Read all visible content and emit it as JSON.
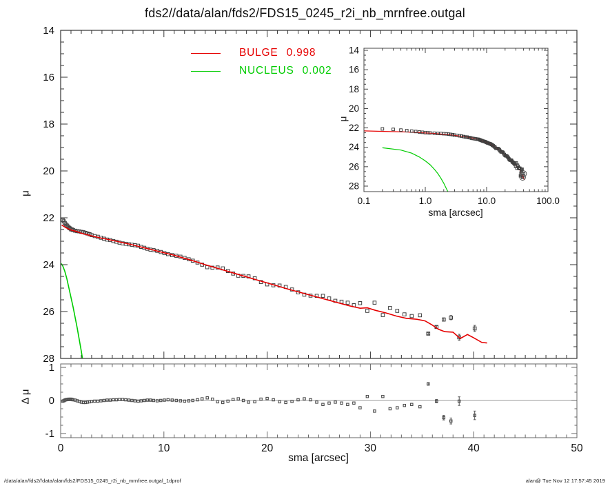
{
  "title": "fds2//data/alan/fds2/FDS15_0245_r2i_nb_mrnfree.outgal",
  "legend": {
    "items": [
      {
        "label": "BULGE",
        "value": "0.998",
        "color": "#e60000"
      },
      {
        "label": "NUCLEUS",
        "value": "0.002",
        "color": "#00cc00"
      }
    ]
  },
  "labels": {
    "main_ylabel": "μ",
    "residual_ylabel": "Δ μ",
    "xlabel": "sma [arcsec]",
    "inset_xlabel": "sma [arcsec]",
    "inset_ylabel": "μ"
  },
  "footer": {
    "left": "/data/alan/fds2//data/alan/fds2/FDS15_0245_r2i_nb_mrnfree.outgal_1dprof",
    "right": "alan@  Tue Nov 12 17:57:45 2019"
  },
  "chart_data": {
    "type": "scatter",
    "description": "Galaxy 1D surface brightness profile (mu vs sma) with BULGE and NUCLEUS model components, log-x inset and residual panel",
    "colors": {
      "observed": "#3f3f3f",
      "bulge": "#e60000",
      "nucleus": "#00cc00",
      "zero_line": "#999999",
      "frame": "#333333"
    },
    "main": {
      "x_range": [
        0,
        50
      ],
      "y_range": [
        28,
        14
      ],
      "x_ticks": [
        0,
        10,
        20,
        30,
        40,
        50
      ],
      "x_tick_labels": [
        "0",
        "10",
        "20",
        "30",
        "40",
        "50"
      ],
      "y_ticks": [
        14,
        16,
        18,
        20,
        22,
        24,
        26,
        28
      ],
      "y_tick_labels": [
        "14",
        "16",
        "18",
        "20",
        "22",
        "24",
        "26",
        "28"
      ],
      "grid": false,
      "legend_position": "top-left-inside"
    },
    "inset": {
      "x_scale": "log",
      "x_range": [
        0.1,
        100
      ],
      "y_range": [
        28,
        14
      ],
      "x_ticks": [
        0.1,
        1,
        10,
        100
      ],
      "x_tick_labels": [
        "0.1",
        "1.0",
        "10.0",
        "100.0"
      ],
      "y_ticks": [
        14,
        16,
        18,
        20,
        22,
        24,
        26,
        28
      ],
      "y_tick_labels": [
        "14",
        "16",
        "18",
        "20",
        "22",
        "24",
        "26",
        "28"
      ]
    },
    "residual": {
      "x_range": [
        0,
        50
      ],
      "y_range": [
        -1,
        1
      ],
      "y_ticks": [
        -1,
        0,
        1
      ],
      "y_tick_labels": [
        "-1",
        "0",
        "1"
      ],
      "points": [
        [
          0.2,
          -0.02
        ],
        [
          0.3,
          -0.01
        ],
        [
          0.4,
          0.01
        ],
        [
          0.5,
          0.02
        ],
        [
          0.6,
          0.03
        ],
        [
          0.7,
          0.03
        ],
        [
          0.8,
          0.04
        ],
        [
          0.9,
          0.03
        ],
        [
          1.0,
          0.04
        ],
        [
          1.1,
          0.03
        ],
        [
          1.2,
          0.02
        ],
        [
          1.4,
          0.01
        ],
        [
          1.6,
          -0.01
        ],
        [
          1.8,
          -0.03
        ],
        [
          2.0,
          -0.05
        ],
        [
          2.2,
          -0.06
        ],
        [
          2.4,
          -0.06
        ],
        [
          2.6,
          -0.05
        ],
        [
          2.8,
          -0.04
        ],
        [
          3.0,
          -0.03
        ],
        [
          3.3,
          -0.02
        ],
        [
          3.6,
          -0.02
        ],
        [
          3.9,
          -0.01
        ],
        [
          4.2,
          0.0
        ],
        [
          4.5,
          0.01
        ],
        [
          4.8,
          0.01
        ],
        [
          5.1,
          0.02
        ],
        [
          5.4,
          0.02
        ],
        [
          5.7,
          0.03
        ],
        [
          6.0,
          0.03
        ],
        [
          6.3,
          0.02
        ],
        [
          6.6,
          0.01
        ],
        [
          6.9,
          0.0
        ],
        [
          7.2,
          -0.01
        ],
        [
          7.5,
          -0.02
        ],
        [
          7.8,
          -0.01
        ],
        [
          8.1,
          0.0
        ],
        [
          8.4,
          0.01
        ],
        [
          8.7,
          0.01
        ],
        [
          9.0,
          0.0
        ],
        [
          9.35,
          -0.01
        ],
        [
          9.7,
          0.0
        ],
        [
          10.05,
          0.01
        ],
        [
          10.4,
          0.02
        ],
        [
          10.8,
          0.01
        ],
        [
          11.2,
          0.0
        ],
        [
          11.6,
          -0.01
        ],
        [
          12.0,
          -0.02
        ],
        [
          12.4,
          -0.01
        ],
        [
          12.8,
          0.0
        ],
        [
          13.25,
          0.02
        ],
        [
          13.7,
          0.05
        ],
        [
          14.2,
          0.08
        ],
        [
          14.7,
          0.04
        ],
        [
          15.2,
          -0.04
        ],
        [
          15.7,
          -0.06
        ],
        [
          16.2,
          -0.02
        ],
        [
          16.7,
          0.03
        ],
        [
          17.2,
          0.05
        ],
        [
          17.7,
          0.0
        ],
        [
          18.2,
          -0.05
        ],
        [
          18.8,
          -0.04
        ],
        [
          19.4,
          0.04
        ],
        [
          20.0,
          0.06
        ],
        [
          20.6,
          0.02
        ],
        [
          21.2,
          -0.04
        ],
        [
          21.8,
          -0.06
        ],
        [
          22.4,
          -0.03
        ],
        [
          23.0,
          0.02
        ],
        [
          23.6,
          0.05
        ],
        [
          24.2,
          0.02
        ],
        [
          24.8,
          -0.05
        ],
        [
          25.4,
          -0.12
        ],
        [
          26.0,
          -0.08
        ],
        [
          26.6,
          -0.05
        ],
        [
          27.2,
          -0.08
        ],
        [
          27.8,
          -0.12
        ],
        [
          28.4,
          -0.08
        ],
        [
          29.0,
          -0.22
        ],
        [
          29.7,
          0.12
        ],
        [
          30.4,
          -0.32
        ],
        [
          31.2,
          0.12
        ],
        [
          31.9,
          -0.25
        ],
        [
          32.6,
          -0.22
        ],
        [
          33.3,
          -0.15
        ],
        [
          34.0,
          -0.12
        ],
        [
          34.8,
          -0.19
        ],
        [
          35.6,
          0.5,
          0.04
        ],
        [
          36.4,
          -0.02,
          0.05
        ],
        [
          37.1,
          -0.52,
          0.07
        ],
        [
          37.8,
          -0.62,
          0.09
        ],
        [
          38.6,
          -0.02,
          0.13
        ],
        [
          40.1,
          -0.45,
          0.13
        ]
      ]
    },
    "series": {
      "observed_name": "observed profile",
      "observed": [
        [
          0.2,
          22.1
        ],
        [
          0.3,
          22.15
        ],
        [
          0.4,
          22.22
        ],
        [
          0.5,
          22.28
        ],
        [
          0.6,
          22.33
        ],
        [
          0.7,
          22.37
        ],
        [
          0.8,
          22.42
        ],
        [
          0.9,
          22.45
        ],
        [
          1.0,
          22.49
        ],
        [
          1.1,
          22.5
        ],
        [
          1.2,
          22.52
        ],
        [
          1.4,
          22.55
        ],
        [
          1.6,
          22.57
        ],
        [
          1.8,
          22.58
        ],
        [
          2.0,
          22.6
        ],
        [
          2.2,
          22.61
        ],
        [
          2.4,
          22.64
        ],
        [
          2.6,
          22.67
        ],
        [
          2.8,
          22.7
        ],
        [
          3.0,
          22.74
        ],
        [
          3.3,
          22.78
        ],
        [
          3.6,
          22.81
        ],
        [
          3.9,
          22.85
        ],
        [
          4.2,
          22.89
        ],
        [
          4.5,
          22.93
        ],
        [
          4.8,
          22.95
        ],
        [
          5.1,
          22.99
        ],
        [
          5.4,
          23.02
        ],
        [
          5.7,
          23.06
        ],
        [
          6.0,
          23.09
        ],
        [
          6.3,
          23.11
        ],
        [
          6.6,
          23.13
        ],
        [
          6.9,
          23.15
        ],
        [
          7.2,
          23.17
        ],
        [
          7.5,
          23.19
        ],
        [
          7.8,
          23.24
        ],
        [
          8.1,
          23.28
        ],
        [
          8.4,
          23.32
        ],
        [
          8.7,
          23.36
        ],
        [
          9.0,
          23.38
        ],
        [
          9.35,
          23.41
        ],
        [
          9.7,
          23.46
        ],
        [
          10.05,
          23.51
        ],
        [
          10.4,
          23.55
        ],
        [
          10.8,
          23.59
        ],
        [
          11.2,
          23.62
        ],
        [
          11.6,
          23.66
        ],
        [
          12.0,
          23.71
        ],
        [
          12.4,
          23.77
        ],
        [
          12.8,
          23.83
        ],
        [
          13.25,
          23.91
        ],
        [
          13.7,
          24.0
        ],
        [
          14.2,
          24.11
        ],
        [
          14.7,
          24.13
        ],
        [
          15.2,
          24.12
        ],
        [
          15.7,
          24.16
        ],
        [
          16.2,
          24.27
        ],
        [
          16.7,
          24.38
        ],
        [
          17.2,
          24.47
        ],
        [
          17.7,
          24.48
        ],
        [
          18.2,
          24.5
        ],
        [
          18.8,
          24.58
        ],
        [
          19.4,
          24.74
        ],
        [
          20.0,
          24.84
        ],
        [
          20.6,
          24.88
        ],
        [
          21.2,
          24.89
        ],
        [
          21.8,
          24.95
        ],
        [
          22.4,
          25.06
        ],
        [
          23.0,
          25.18
        ],
        [
          23.6,
          25.28
        ],
        [
          24.2,
          25.32
        ],
        [
          24.8,
          25.33
        ],
        [
          25.4,
          25.33
        ],
        [
          26.0,
          25.44
        ],
        [
          26.6,
          25.54
        ],
        [
          27.2,
          25.58
        ],
        [
          27.8,
          25.62
        ],
        [
          28.4,
          25.73
        ],
        [
          29.0,
          25.64
        ],
        [
          29.7,
          25.97
        ],
        [
          30.4,
          25.62
        ],
        [
          31.2,
          26.15
        ],
        [
          31.9,
          25.85
        ],
        [
          32.6,
          25.97
        ],
        [
          33.3,
          26.12
        ],
        [
          34.0,
          26.19
        ],
        [
          34.8,
          26.16
        ],
        [
          35.6,
          26.94,
          0.04
        ],
        [
          36.4,
          26.66,
          0.05
        ],
        [
          37.1,
          26.34,
          0.07
        ],
        [
          37.8,
          26.26,
          0.09
        ],
        [
          38.6,
          27.1,
          0.13
        ],
        [
          40.1,
          26.72,
          0.13
        ]
      ],
      "bulge": [
        [
          0.1,
          22.31
        ],
        [
          0.5,
          22.42
        ],
        [
          1,
          22.52
        ],
        [
          1.5,
          22.58
        ],
        [
          2,
          22.66
        ],
        [
          3,
          22.77
        ],
        [
          4,
          22.87
        ],
        [
          5,
          22.96
        ],
        [
          6,
          23.06
        ],
        [
          7,
          23.16
        ],
        [
          8,
          23.27
        ],
        [
          9,
          23.38
        ],
        [
          10,
          23.49
        ],
        [
          11,
          23.6
        ],
        [
          12,
          23.73
        ],
        [
          13,
          23.86
        ],
        [
          14,
          24.0
        ],
        [
          15,
          24.13
        ],
        [
          16,
          24.26
        ],
        [
          17,
          24.39
        ],
        [
          18,
          24.52
        ],
        [
          19,
          24.65
        ],
        [
          20,
          24.78
        ],
        [
          21,
          24.91
        ],
        [
          22,
          25.04
        ],
        [
          23,
          25.16
        ],
        [
          24,
          25.28
        ],
        [
          25,
          25.4
        ],
        [
          26,
          25.52
        ],
        [
          27,
          25.64
        ],
        [
          28,
          25.76
        ],
        [
          29,
          25.86
        ],
        [
          29.7,
          25.84
        ],
        [
          30.5,
          25.95
        ],
        [
          31.5,
          26.06
        ],
        [
          32.5,
          26.19
        ],
        [
          33.5,
          26.29
        ],
        [
          34.5,
          26.33
        ],
        [
          35.3,
          26.4
        ],
        [
          36.0,
          26.58
        ],
        [
          36.6,
          26.76
        ],
        [
          37.2,
          26.86
        ],
        [
          38.0,
          26.88
        ],
        [
          38.7,
          27.15
        ],
        [
          39.4,
          26.98
        ],
        [
          40.0,
          27.12
        ],
        [
          40.8,
          27.32
        ],
        [
          41.3,
          27.34
        ]
      ],
      "nucleus": [
        [
          0.05,
          23.95
        ],
        [
          0.2,
          24.05
        ],
        [
          0.4,
          24.28
        ],
        [
          0.6,
          24.6
        ],
        [
          0.8,
          25.0
        ],
        [
          1.0,
          25.4
        ],
        [
          1.2,
          25.8
        ],
        [
          1.4,
          26.25
        ],
        [
          1.6,
          26.7
        ],
        [
          1.8,
          27.2
        ],
        [
          2.0,
          27.7
        ],
        [
          2.2,
          28.25
        ],
        [
          2.35,
          28.6
        ]
      ]
    }
  }
}
